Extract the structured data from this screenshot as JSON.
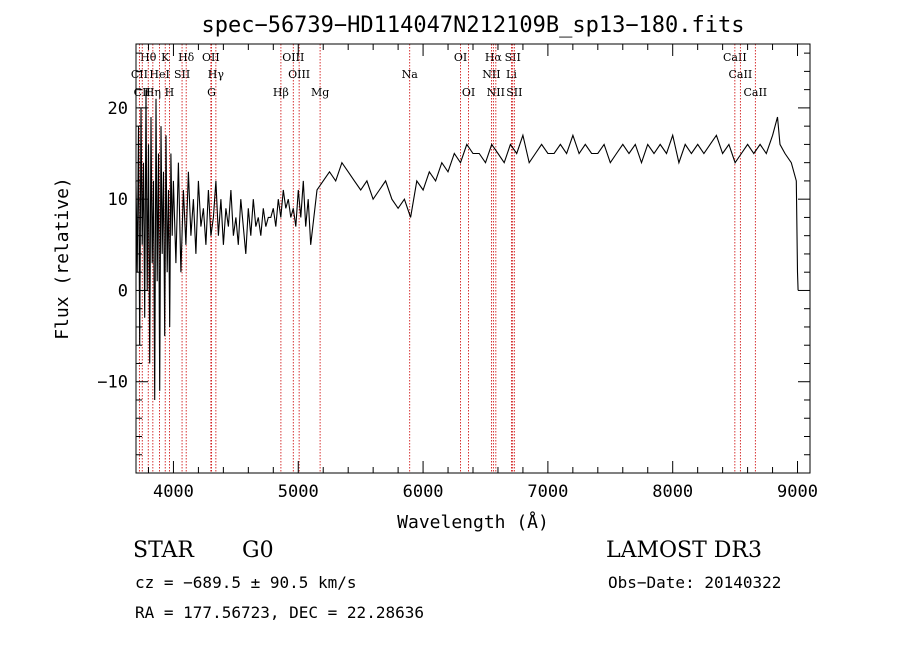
{
  "chart_data": {
    "type": "line",
    "title": "spec−56739−HD114047N212109B_sp13−180.fits",
    "xlabel": "Wavelength (Å)",
    "ylabel": "Flux (relative)",
    "xlim": [
      3700,
      9100
    ],
    "ylim": [
      -20,
      27
    ],
    "x_ticks": [
      4000,
      5000,
      6000,
      7000,
      8000,
      9000
    ],
    "y_ticks": [
      -10,
      0,
      10,
      20
    ],
    "x_tick_labels": [
      "4000",
      "5000",
      "6000",
      "7000",
      "8000",
      "9000"
    ],
    "y_tick_labels": [
      "−10",
      "0",
      "10",
      "20"
    ],
    "grid": false,
    "series": [
      {
        "name": "flux",
        "x": [
          3700,
          3710,
          3720,
          3730,
          3740,
          3750,
          3760,
          3770,
          3780,
          3790,
          3800,
          3810,
          3820,
          3830,
          3840,
          3850,
          3860,
          3870,
          3880,
          3890,
          3900,
          3910,
          3920,
          3930,
          3940,
          3950,
          3960,
          3970,
          3980,
          3990,
          4000,
          4020,
          4040,
          4060,
          4080,
          4100,
          4120,
          4140,
          4160,
          4180,
          4200,
          4220,
          4240,
          4260,
          4280,
          4300,
          4320,
          4340,
          4360,
          4380,
          4400,
          4420,
          4440,
          4460,
          4480,
          4500,
          4520,
          4540,
          4560,
          4580,
          4600,
          4620,
          4640,
          4660,
          4680,
          4700,
          4720,
          4740,
          4760,
          4780,
          4800,
          4820,
          4840,
          4860,
          4880,
          4900,
          4920,
          4940,
          4960,
          4980,
          5000,
          5020,
          5040,
          5060,
          5080,
          5100,
          5150,
          5200,
          5250,
          5300,
          5350,
          5400,
          5450,
          5500,
          5550,
          5600,
          5650,
          5700,
          5750,
          5800,
          5850,
          5900,
          5950,
          6000,
          6050,
          6100,
          6150,
          6200,
          6250,
          6300,
          6350,
          6400,
          6450,
          6500,
          6550,
          6600,
          6650,
          6700,
          6750,
          6800,
          6850,
          6900,
          6950,
          7000,
          7050,
          7100,
          7150,
          7200,
          7250,
          7300,
          7350,
          7400,
          7450,
          7500,
          7550,
          7600,
          7650,
          7700,
          7750,
          7800,
          7850,
          7900,
          7950,
          8000,
          8050,
          8100,
          8150,
          8200,
          8250,
          8300,
          8350,
          8400,
          8450,
          8500,
          8550,
          8600,
          8650,
          8700,
          8750,
          8800,
          8840,
          8860,
          8900,
          8950,
          8990,
          9000,
          9005
        ],
        "y": [
          12,
          2,
          18,
          -6,
          20,
          5,
          14,
          -3,
          22,
          0,
          16,
          -8,
          19,
          3,
          12,
          -12,
          21,
          1,
          15,
          -11,
          18,
          4,
          13,
          -5,
          17,
          2,
          11,
          -4,
          15,
          6,
          12,
          3,
          14,
          2,
          11,
          5,
          13,
          6,
          10,
          4,
          12,
          7,
          9,
          5,
          11,
          6,
          8,
          12,
          6,
          10,
          5,
          9,
          7,
          11,
          6,
          8,
          5,
          10,
          7,
          4,
          9,
          6,
          10,
          7,
          8,
          6,
          9,
          7,
          8,
          8,
          9,
          7,
          10,
          8,
          11,
          9,
          10,
          8,
          9,
          7,
          11,
          8,
          12,
          7,
          10,
          5,
          11,
          12,
          13,
          12,
          14,
          13,
          12,
          11,
          12,
          10,
          11,
          12,
          10,
          9,
          10,
          8,
          12,
          11,
          13,
          12,
          14,
          13,
          15,
          14,
          16,
          15,
          15,
          14,
          16,
          15,
          14,
          16,
          15,
          17,
          14,
          15,
          16,
          15,
          15,
          16,
          15,
          17,
          15,
          16,
          15,
          15,
          16,
          14,
          15,
          16,
          15,
          16,
          14,
          16,
          15,
          16,
          15,
          17,
          14,
          16,
          15,
          16,
          15,
          16,
          17,
          15,
          16,
          14,
          15,
          16,
          15,
          16,
          15,
          17,
          19,
          16,
          15,
          14,
          12,
          2,
          0
        ]
      }
    ],
    "lines": [
      {
        "label": "Hθ",
        "x": 3798,
        "row": 1
      },
      {
        "label": "K",
        "x": 3934,
        "row": 1
      },
      {
        "label": "Hδ",
        "x": 4102,
        "row": 1
      },
      {
        "label": "OII",
        "x": 4300,
        "row": 1
      },
      {
        "label": "OIII",
        "x": 4960,
        "row": 1
      },
      {
        "label": "OI",
        "x": 6300,
        "row": 1
      },
      {
        "label": "Hα",
        "x": 6563,
        "row": 1
      },
      {
        "label": "SII",
        "x": 6718,
        "row": 1
      },
      {
        "label": "CaII",
        "x": 8498,
        "row": 1
      },
      {
        "label": "CII",
        "x": 3727,
        "row": 2
      },
      {
        "label": "HeI",
        "x": 3889,
        "row": 2
      },
      {
        "label": "SII",
        "x": 4069,
        "row": 2
      },
      {
        "label": "Hγ",
        "x": 4340,
        "row": 2
      },
      {
        "label": "OIII",
        "x": 5007,
        "row": 2
      },
      {
        "label": "Na",
        "x": 5893,
        "row": 2
      },
      {
        "label": "NII",
        "x": 6548,
        "row": 2
      },
      {
        "label": "Li",
        "x": 6708,
        "row": 2
      },
      {
        "label": "CaII",
        "x": 8542,
        "row": 2
      },
      {
        "label": "CII",
        "x": 3750,
        "row": 3
      },
      {
        "label": "Hη",
        "x": 3835,
        "row": 3
      },
      {
        "label": "H",
        "x": 3968,
        "row": 3
      },
      {
        "label": "G",
        "x": 4305,
        "row": 3
      },
      {
        "label": "Hβ",
        "x": 4861,
        "row": 3
      },
      {
        "label": "Mg",
        "x": 5175,
        "row": 3
      },
      {
        "label": "OI",
        "x": 6364,
        "row": 3
      },
      {
        "label": "NII",
        "x": 6583,
        "row": 3
      },
      {
        "label": "SII",
        "x": 6731,
        "row": 3
      },
      {
        "label": "CaII",
        "x": 8662,
        "row": 3
      }
    ]
  },
  "info": {
    "class": "STAR",
    "subclass": "G0",
    "survey": "LAMOST DR3",
    "cz": "cz = −689.5 ± 90.5 km/s",
    "obs_date": "Obs−Date: 20140322",
    "radec": "RA = 177.56723, DEC =  22.28636"
  },
  "colors": {
    "line_marker": "#cc0000",
    "spectrum": "#000000"
  }
}
